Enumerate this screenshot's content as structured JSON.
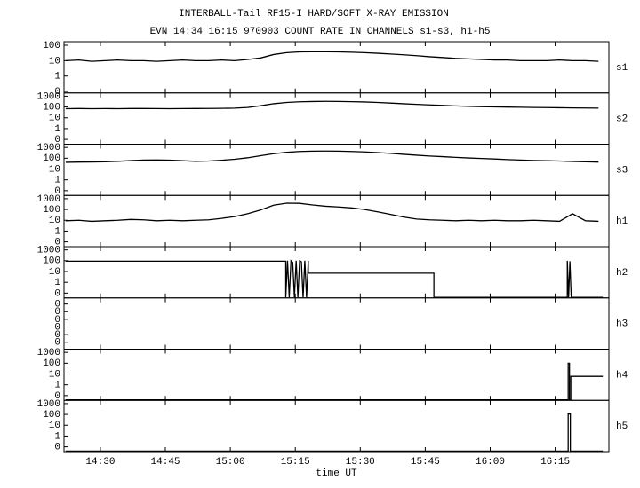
{
  "title": "INTERBALL-Tail RF15-I HARD/SOFT X-RAY EMISSION",
  "subtitle": "EVN 14:34 16:15 970903  COUNT RATE IN CHANNELS s1-s3, h1-h5",
  "chart_data": [
    {
      "type": "line",
      "log_y": true,
      "xlim": [
        861.6,
        987.4
      ],
      "ylim": [
        0.08,
        170
      ],
      "yticks": [
        {
          "value": 0.1,
          "label": "0"
        },
        1,
        10,
        100
      ],
      "x": [
        862,
        865,
        868,
        871,
        874,
        877,
        880,
        883,
        886,
        889,
        892,
        895,
        898,
        901,
        904,
        907,
        910,
        913,
        916,
        919,
        922,
        925,
        928,
        931,
        934,
        937,
        940,
        943,
        946,
        949,
        952,
        955,
        958,
        961,
        964,
        967,
        970,
        973,
        976,
        979,
        982,
        985
      ],
      "series": [
        {
          "name": "s1",
          "color": "#000000",
          "values": [
            10,
            11,
            9,
            10,
            11,
            10,
            10,
            9,
            10,
            11,
            10,
            10,
            11,
            10,
            12,
            15,
            25,
            33,
            37,
            38,
            38,
            37,
            35,
            33,
            30,
            27,
            24,
            21,
            18,
            16,
            14,
            13,
            12,
            11,
            11,
            10,
            10,
            10,
            11,
            10,
            10,
            9
          ]
        }
      ]
    },
    {
      "type": "line",
      "log_y": true,
      "xlim": [
        861.6,
        987.4
      ],
      "ylim": [
        0.036,
        2000
      ],
      "yticks": [
        {
          "value": 0.1,
          "label": "0"
        },
        1,
        10,
        100,
        1000
      ],
      "x": [
        862,
        865,
        868,
        871,
        874,
        877,
        880,
        883,
        886,
        889,
        892,
        895,
        898,
        901,
        904,
        907,
        910,
        913,
        916,
        919,
        922,
        925,
        928,
        931,
        934,
        937,
        940,
        943,
        946,
        949,
        952,
        955,
        958,
        961,
        964,
        967,
        970,
        973,
        976,
        979,
        982,
        985
      ],
      "series": [
        {
          "name": "s2",
          "color": "#000000",
          "values": [
            70,
            72,
            70,
            71,
            70,
            72,
            72,
            71,
            70,
            71,
            72,
            73,
            75,
            78,
            90,
            130,
            200,
            260,
            300,
            320,
            330,
            325,
            310,
            290,
            260,
            230,
            200,
            175,
            155,
            140,
            125,
            115,
            108,
            102,
            98,
            95,
            90,
            88,
            85,
            82,
            80,
            78
          ]
        }
      ]
    },
    {
      "type": "line",
      "log_y": true,
      "xlim": [
        861.6,
        987.4
      ],
      "ylim": [
        0.036,
        2000
      ],
      "yticks": [
        {
          "value": 0.1,
          "label": "0"
        },
        1,
        10,
        100,
        1000
      ],
      "x": [
        862,
        865,
        868,
        871,
        874,
        877,
        880,
        883,
        886,
        889,
        892,
        895,
        898,
        901,
        904,
        907,
        910,
        913,
        916,
        919,
        922,
        925,
        928,
        931,
        934,
        937,
        940,
        943,
        946,
        949,
        952,
        955,
        958,
        961,
        964,
        967,
        970,
        973,
        976,
        979,
        982,
        985
      ],
      "series": [
        {
          "name": "s3",
          "color": "#000000",
          "values": [
            42,
            44,
            45,
            47,
            52,
            60,
            68,
            70,
            66,
            58,
            52,
            55,
            65,
            80,
            110,
            170,
            260,
            350,
            420,
            450,
            460,
            450,
            420,
            380,
            330,
            280,
            230,
            190,
            160,
            140,
            120,
            105,
            95,
            85,
            75,
            68,
            62,
            58,
            55,
            50,
            47,
            44
          ]
        }
      ]
    },
    {
      "type": "line",
      "log_y": true,
      "xlim": [
        861.6,
        987.4
      ],
      "ylim": [
        0.036,
        2000
      ],
      "yticks": [
        {
          "value": 0.1,
          "label": "0"
        },
        1,
        10,
        100,
        1000
      ],
      "x": [
        862,
        865,
        868,
        871,
        874,
        877,
        880,
        883,
        886,
        889,
        892,
        895,
        898,
        901,
        904,
        907,
        910,
        913,
        916,
        919,
        922,
        925,
        928,
        931,
        934,
        937,
        940,
        943,
        946,
        949,
        952,
        955,
        958,
        961,
        964,
        967,
        970,
        973,
        976,
        979,
        982,
        985
      ],
      "series": [
        {
          "name": "h1",
          "color": "#000000",
          "values": [
            9,
            10,
            8,
            9,
            10,
            12,
            11,
            9,
            10,
            9,
            10,
            11,
            15,
            22,
            40,
            90,
            250,
            380,
            370,
            260,
            200,
            170,
            140,
            100,
            60,
            35,
            20,
            13,
            11,
            10,
            9,
            10,
            9,
            10,
            9,
            9,
            10,
            9,
            8,
            40,
            9,
            8
          ]
        }
      ]
    },
    {
      "type": "line",
      "log_y": true,
      "xlim": [
        861.6,
        987.4
      ],
      "ylim": [
        0.036,
        2000
      ],
      "yticks": [
        {
          "value": 0.1,
          "label": "0"
        },
        1,
        10,
        100,
        1000
      ],
      "x": [
        862,
        912.8,
        912.8,
        913.2,
        913.6,
        914,
        914.4,
        914.8,
        915.2,
        915.6,
        916,
        916.4,
        916.8,
        917.2,
        917.6,
        918,
        918,
        947,
        947,
        977.8,
        977.8,
        978.1,
        978.4,
        978.7,
        979,
        986
      ],
      "series": [
        {
          "name": "h2",
          "color": "#000000",
          "values": [
            90,
            90,
            0.04,
            100,
            0.04,
            100,
            70,
            0.04,
            100,
            0.04,
            100,
            80,
            0.04,
            100,
            0.04,
            100,
            7,
            7,
            0.04,
            0.04,
            100,
            0.04,
            90,
            0.04,
            0.04,
            0.04
          ]
        }
      ]
    },
    {
      "type": "line",
      "log_y": false,
      "xlim": [
        861.6,
        987.4
      ],
      "ylim": [
        -0.09,
        0.58
      ],
      "yticks": [
        {
          "value": 0,
          "label": "0"
        },
        {
          "value": 0.1,
          "label": "0"
        },
        {
          "value": 0.2,
          "label": "0"
        },
        {
          "value": 0.3,
          "label": "0"
        },
        {
          "value": 0.4,
          "label": "0"
        },
        {
          "value": 0.5,
          "label": "0"
        }
      ],
      "x": [],
      "series": [
        {
          "name": "h3",
          "color": "#000000",
          "values": []
        }
      ]
    },
    {
      "type": "line",
      "log_y": true,
      "xlim": [
        861.6,
        987.4
      ],
      "ylim": [
        0.036,
        2000
      ],
      "yticks": [
        {
          "value": 0.1,
          "label": "0"
        },
        1,
        10,
        100,
        1000
      ],
      "x": [
        862,
        978,
        978,
        978.3,
        978.3,
        978.6,
        978.6,
        986
      ],
      "series": [
        {
          "name": "h4",
          "color": "#000000",
          "values": [
            0.04,
            0.04,
            100,
            100,
            0.04,
            0.04,
            6,
            6
          ]
        }
      ]
    },
    {
      "type": "line",
      "log_y": true,
      "xlim": [
        861.6,
        987.4
      ],
      "ylim": [
        0.036,
        2000
      ],
      "yticks": [
        {
          "value": 0.1,
          "label": "0"
        },
        1,
        10,
        100,
        1000
      ],
      "x": [
        862,
        978,
        978,
        978.5,
        978.5,
        986
      ],
      "series": [
        {
          "name": "h5",
          "color": "#000000",
          "values": [
            0.04,
            0.04,
            110,
            110,
            0.04,
            0.04
          ]
        }
      ],
      "xlabel": "time UT",
      "xticks": [
        {
          "value": 870,
          "label": "14:30"
        },
        {
          "value": 885,
          "label": "14:45"
        },
        {
          "value": 900,
          "label": "15:00"
        },
        {
          "value": 915,
          "label": "15:15"
        },
        {
          "value": 930,
          "label": "15:30"
        },
        {
          "value": 945,
          "label": "15:45"
        },
        {
          "value": 960,
          "label": "16:00"
        },
        {
          "value": 975,
          "label": "16:15"
        }
      ]
    }
  ]
}
